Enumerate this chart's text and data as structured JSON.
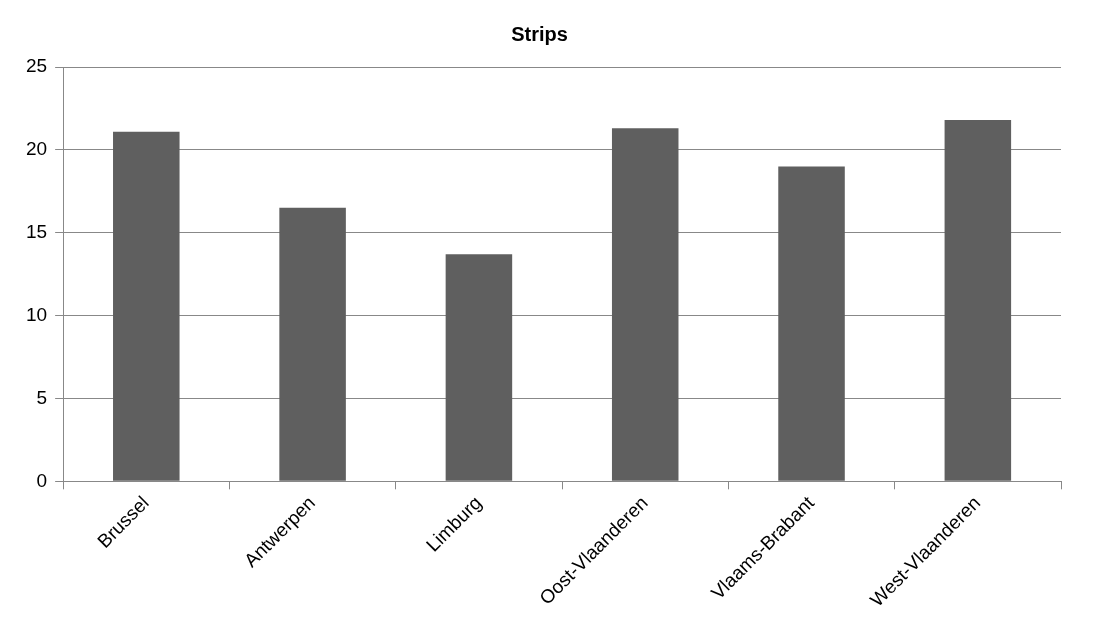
{
  "chart_data": {
    "type": "bar",
    "title": "Strips",
    "categories": [
      "Brussel",
      "Antwerpen",
      "Limburg",
      "Oost-Vlaanderen",
      "Vlaams-Brabant",
      "West-Vlaanderen"
    ],
    "values": [
      21.1,
      16.5,
      13.7,
      21.3,
      19.0,
      21.8
    ],
    "color": "#5f5f5f",
    "ylim": [
      0,
      25
    ],
    "yticks": [
      0,
      5,
      10,
      15,
      20,
      25
    ],
    "grid": "y",
    "legend": false
  }
}
